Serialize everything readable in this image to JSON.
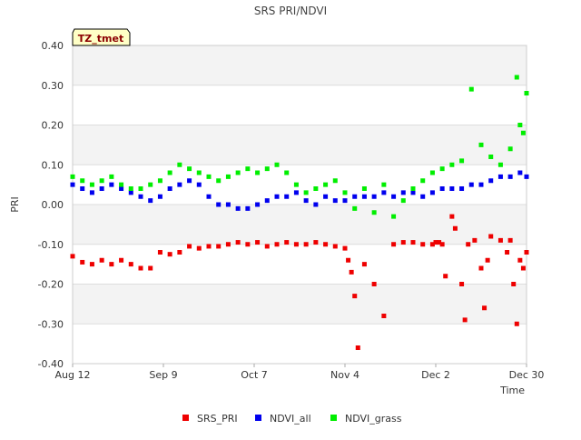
{
  "chart_data": {
    "type": "scatter",
    "title": "SRS PRI/NDVI",
    "badge": "TZ_tmet",
    "xlabel": "Time",
    "ylabel": "PRI",
    "xlim": [
      0,
      140
    ],
    "ylim": [
      -0.4,
      0.4
    ],
    "x_unit": "days since Aug 12",
    "grid": true,
    "legend_position": "bottom",
    "x_ticks": [
      {
        "value": 0,
        "label": "Aug 12"
      },
      {
        "value": 28,
        "label": "Sep 9"
      },
      {
        "value": 56,
        "label": "Oct 7"
      },
      {
        "value": 84,
        "label": "Nov 4"
      },
      {
        "value": 112,
        "label": "Dec 2"
      },
      {
        "value": 140,
        "label": "Dec 30"
      }
    ],
    "y_ticks": [
      {
        "value": 0.4,
        "label": "0.40"
      },
      {
        "value": 0.3,
        "label": "0.30"
      },
      {
        "value": 0.2,
        "label": "0.20"
      },
      {
        "value": 0.1,
        "label": "0.10"
      },
      {
        "value": 0.0,
        "label": "0.00"
      },
      {
        "value": -0.1,
        "label": "-0.10"
      },
      {
        "value": -0.2,
        "label": "-0.20"
      },
      {
        "value": -0.3,
        "label": "-0.30"
      },
      {
        "value": -0.4,
        "label": "-0.40"
      }
    ],
    "series": [
      {
        "name": "SRS_PRI",
        "color": "#ee0000",
        "x": [
          0,
          3,
          6,
          9,
          12,
          15,
          18,
          21,
          24,
          27,
          30,
          33,
          36,
          39,
          42,
          45,
          48,
          51,
          54,
          57,
          60,
          63,
          66,
          69,
          72,
          75,
          78,
          81,
          84,
          85,
          86,
          87,
          88,
          90,
          93,
          96,
          99,
          102,
          105,
          108,
          111,
          112,
          113,
          114,
          115,
          117,
          118,
          120,
          121,
          122,
          124,
          126,
          127,
          128,
          129,
          132,
          134,
          135,
          136,
          137,
          138,
          139,
          140
        ],
        "values": [
          -0.13,
          -0.145,
          -0.15,
          -0.14,
          -0.15,
          -0.14,
          -0.15,
          -0.16,
          -0.16,
          -0.12,
          -0.125,
          -0.12,
          -0.105,
          -0.11,
          -0.105,
          -0.105,
          -0.1,
          -0.095,
          -0.1,
          -0.095,
          -0.105,
          -0.1,
          -0.095,
          -0.1,
          -0.1,
          -0.095,
          -0.1,
          -0.105,
          -0.11,
          -0.14,
          -0.17,
          -0.23,
          -0.36,
          -0.15,
          -0.2,
          -0.28,
          -0.1,
          -0.095,
          -0.095,
          -0.1,
          -0.1,
          -0.095,
          -0.095,
          -0.1,
          -0.18,
          -0.03,
          -0.06,
          -0.2,
          -0.29,
          -0.1,
          -0.09,
          -0.16,
          -0.26,
          -0.14,
          -0.08,
          -0.09,
          -0.12,
          -0.09,
          -0.2,
          -0.3,
          -0.14,
          -0.16,
          -0.12
        ]
      },
      {
        "name": "NDVI_all",
        "color": "#0000ee",
        "x": [
          0,
          3,
          6,
          9,
          12,
          15,
          18,
          21,
          24,
          27,
          30,
          33,
          36,
          39,
          42,
          45,
          48,
          51,
          54,
          57,
          60,
          63,
          66,
          69,
          72,
          75,
          78,
          81,
          84,
          87,
          90,
          93,
          96,
          99,
          102,
          105,
          108,
          111,
          114,
          117,
          120,
          123,
          126,
          129,
          132,
          135,
          138,
          140
        ],
        "values": [
          0.05,
          0.04,
          0.03,
          0.04,
          0.05,
          0.04,
          0.03,
          0.02,
          0.01,
          0.02,
          0.04,
          0.05,
          0.06,
          0.05,
          0.02,
          0.0,
          0.0,
          -0.01,
          -0.01,
          0.0,
          0.01,
          0.02,
          0.02,
          0.03,
          0.01,
          0.0,
          0.02,
          0.01,
          0.01,
          0.02,
          0.02,
          0.02,
          0.03,
          0.02,
          0.03,
          0.03,
          0.02,
          0.03,
          0.04,
          0.04,
          0.04,
          0.05,
          0.05,
          0.06,
          0.07,
          0.07,
          0.08,
          0.07
        ]
      },
      {
        "name": "NDVI_grass",
        "color": "#00ee00",
        "x": [
          0,
          3,
          6,
          9,
          12,
          15,
          18,
          21,
          24,
          27,
          30,
          33,
          36,
          39,
          42,
          45,
          48,
          51,
          54,
          57,
          60,
          63,
          66,
          69,
          72,
          75,
          78,
          81,
          84,
          87,
          90,
          93,
          96,
          99,
          102,
          105,
          108,
          111,
          114,
          117,
          120,
          123,
          126,
          129,
          132,
          135,
          137,
          138,
          139,
          140
        ],
        "values": [
          0.07,
          0.06,
          0.05,
          0.06,
          0.07,
          0.05,
          0.04,
          0.04,
          0.05,
          0.06,
          0.08,
          0.1,
          0.09,
          0.08,
          0.07,
          0.06,
          0.07,
          0.08,
          0.09,
          0.08,
          0.09,
          0.1,
          0.08,
          0.05,
          0.03,
          0.04,
          0.05,
          0.06,
          0.03,
          -0.01,
          0.04,
          -0.02,
          0.05,
          -0.03,
          0.01,
          0.04,
          0.06,
          0.08,
          0.09,
          0.1,
          0.11,
          0.29,
          0.15,
          0.12,
          0.1,
          0.14,
          0.32,
          0.2,
          0.18,
          0.28
        ]
      }
    ]
  }
}
